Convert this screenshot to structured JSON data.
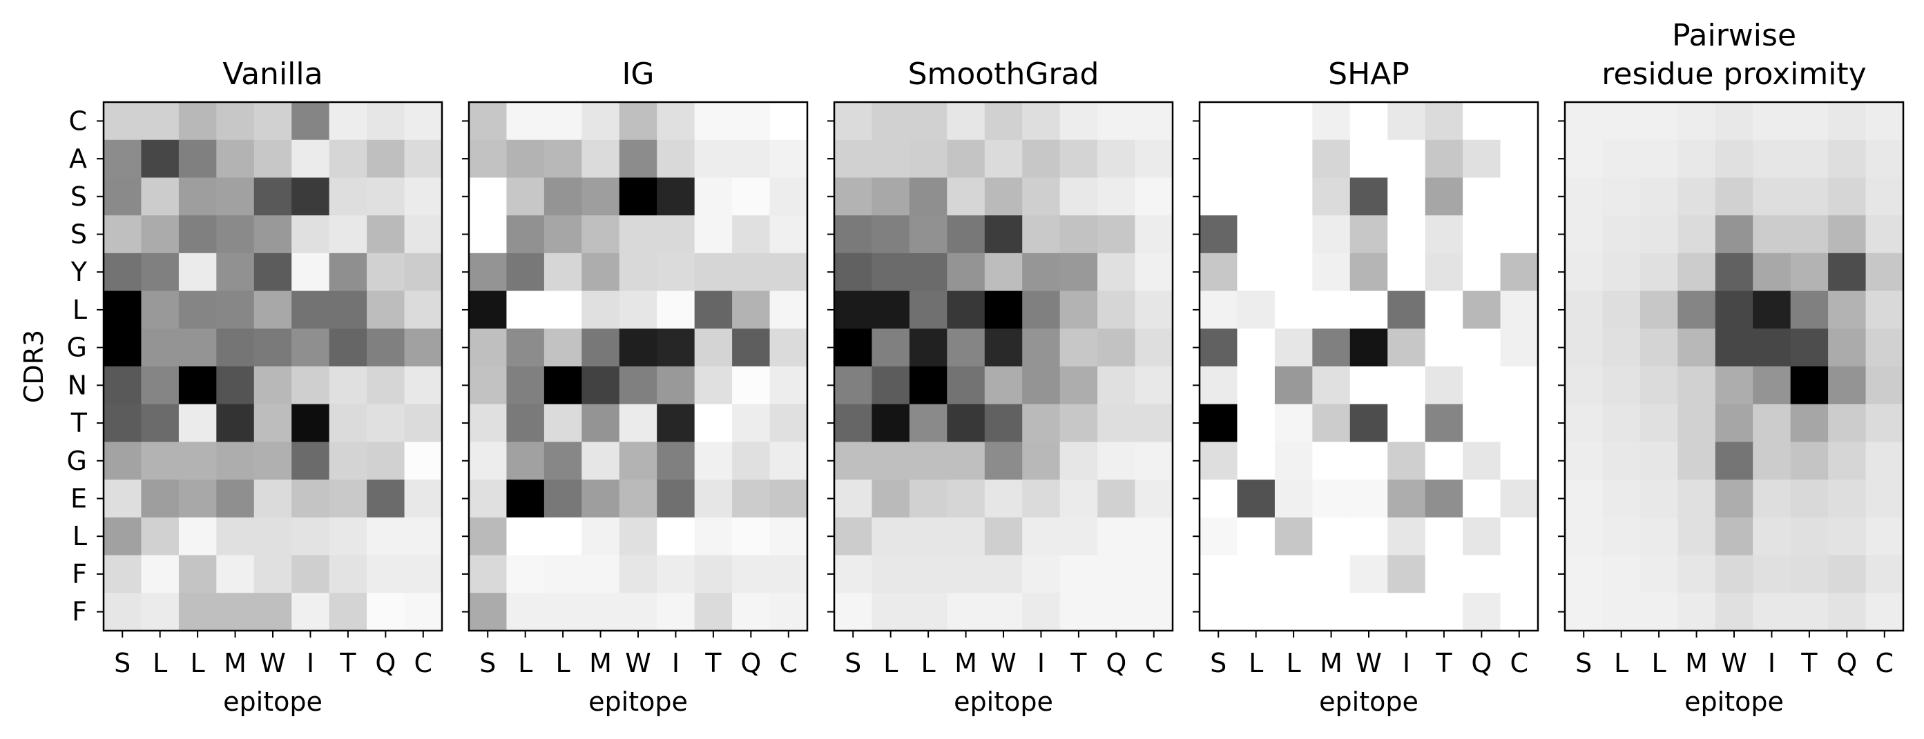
{
  "chart_data": {
    "type": "heatmap",
    "colormap": "Greys",
    "ylabel": "CDR3",
    "xlabel": "epitope",
    "rows": [
      "C",
      "A",
      "S",
      "S",
      "Y",
      "L",
      "G",
      "N",
      "T",
      "G",
      "E",
      "L",
      "F",
      "F"
    ],
    "cols": [
      "S",
      "L",
      "L",
      "M",
      "W",
      "I",
      "T",
      "Q",
      "C"
    ],
    "panels": [
      {
        "title_lines": [
          "Vanilla"
        ],
        "values": [
          [
            0.18,
            0.18,
            0.28,
            0.22,
            0.18,
            0.48,
            0.07,
            0.1,
            0.07
          ],
          [
            0.45,
            0.72,
            0.5,
            0.3,
            0.22,
            0.08,
            0.16,
            0.25,
            0.14
          ],
          [
            0.46,
            0.2,
            0.38,
            0.37,
            0.65,
            0.77,
            0.13,
            0.12,
            0.08
          ],
          [
            0.25,
            0.33,
            0.5,
            0.46,
            0.4,
            0.12,
            0.09,
            0.27,
            0.1
          ],
          [
            0.55,
            0.5,
            0.08,
            0.43,
            0.64,
            0.04,
            0.44,
            0.18,
            0.2
          ],
          [
            1.0,
            0.4,
            0.48,
            0.47,
            0.34,
            0.55,
            0.55,
            0.26,
            0.14
          ],
          [
            1.0,
            0.42,
            0.42,
            0.54,
            0.52,
            0.44,
            0.6,
            0.5,
            0.37
          ],
          [
            0.65,
            0.48,
            1.0,
            0.67,
            0.28,
            0.19,
            0.12,
            0.16,
            0.09
          ],
          [
            0.64,
            0.58,
            0.08,
            0.8,
            0.26,
            0.95,
            0.14,
            0.12,
            0.14
          ],
          [
            0.36,
            0.3,
            0.3,
            0.32,
            0.31,
            0.58,
            0.17,
            0.18,
            0.01
          ],
          [
            0.13,
            0.38,
            0.34,
            0.44,
            0.14,
            0.23,
            0.21,
            0.58,
            0.09
          ],
          [
            0.37,
            0.18,
            0.04,
            0.12,
            0.12,
            0.11,
            0.09,
            0.05,
            0.05
          ],
          [
            0.14,
            0.04,
            0.23,
            0.06,
            0.12,
            0.19,
            0.11,
            0.07,
            0.07
          ],
          [
            0.1,
            0.08,
            0.25,
            0.25,
            0.25,
            0.06,
            0.17,
            0.02,
            0.03
          ]
        ]
      },
      {
        "title_lines": [
          "IG"
        ],
        "values": [
          [
            0.22,
            0.04,
            0.04,
            0.1,
            0.25,
            0.12,
            0.03,
            0.03,
            0.0
          ],
          [
            0.24,
            0.3,
            0.28,
            0.14,
            0.45,
            0.15,
            0.07,
            0.07,
            0.05
          ],
          [
            0.0,
            0.22,
            0.42,
            0.38,
            1.0,
            0.85,
            0.04,
            0.02,
            0.07
          ],
          [
            0.0,
            0.43,
            0.35,
            0.25,
            0.15,
            0.15,
            0.04,
            0.12,
            0.06
          ],
          [
            0.42,
            0.53,
            0.16,
            0.32,
            0.15,
            0.14,
            0.16,
            0.16,
            0.16
          ],
          [
            0.92,
            0.0,
            0.0,
            0.12,
            0.1,
            0.02,
            0.6,
            0.3,
            0.04
          ],
          [
            0.25,
            0.45,
            0.24,
            0.53,
            0.88,
            0.85,
            0.17,
            0.63,
            0.14
          ],
          [
            0.24,
            0.5,
            1.0,
            0.74,
            0.5,
            0.4,
            0.12,
            0.01,
            0.07
          ],
          [
            0.12,
            0.52,
            0.14,
            0.42,
            0.08,
            0.85,
            0.0,
            0.07,
            0.12
          ],
          [
            0.07,
            0.37,
            0.47,
            0.1,
            0.3,
            0.5,
            0.06,
            0.12,
            0.07
          ],
          [
            0.12,
            1.0,
            0.53,
            0.38,
            0.27,
            0.56,
            0.1,
            0.2,
            0.22
          ],
          [
            0.27,
            0.0,
            0.0,
            0.05,
            0.12,
            0.0,
            0.04,
            0.02,
            0.04
          ],
          [
            0.15,
            0.03,
            0.04,
            0.04,
            0.1,
            0.07,
            0.1,
            0.07,
            0.07
          ],
          [
            0.33,
            0.06,
            0.06,
            0.06,
            0.06,
            0.04,
            0.14,
            0.04,
            0.05
          ]
        ]
      },
      {
        "title_lines": [
          "SmoothGrad"
        ],
        "values": [
          [
            0.14,
            0.18,
            0.18,
            0.1,
            0.18,
            0.13,
            0.07,
            0.05,
            0.05
          ],
          [
            0.18,
            0.18,
            0.19,
            0.23,
            0.14,
            0.22,
            0.17,
            0.11,
            0.08
          ],
          [
            0.3,
            0.34,
            0.44,
            0.16,
            0.27,
            0.19,
            0.09,
            0.07,
            0.04
          ],
          [
            0.52,
            0.5,
            0.43,
            0.53,
            0.76,
            0.21,
            0.24,
            0.22,
            0.07
          ],
          [
            0.62,
            0.58,
            0.58,
            0.42,
            0.26,
            0.41,
            0.4,
            0.12,
            0.06
          ],
          [
            0.9,
            0.9,
            0.56,
            0.78,
            1.0,
            0.5,
            0.3,
            0.16,
            0.1
          ],
          [
            1.0,
            0.5,
            0.87,
            0.48,
            0.84,
            0.42,
            0.22,
            0.24,
            0.13
          ],
          [
            0.5,
            0.64,
            1.0,
            0.55,
            0.32,
            0.42,
            0.32,
            0.12,
            0.09
          ],
          [
            0.6,
            0.92,
            0.46,
            0.78,
            0.62,
            0.27,
            0.22,
            0.13,
            0.13
          ],
          [
            0.25,
            0.25,
            0.25,
            0.25,
            0.45,
            0.28,
            0.1,
            0.06,
            0.05
          ],
          [
            0.1,
            0.27,
            0.18,
            0.16,
            0.1,
            0.14,
            0.08,
            0.18,
            0.07
          ],
          [
            0.2,
            0.1,
            0.1,
            0.1,
            0.19,
            0.07,
            0.07,
            0.04,
            0.04
          ],
          [
            0.07,
            0.09,
            0.09,
            0.09,
            0.09,
            0.06,
            0.04,
            0.04,
            0.04
          ],
          [
            0.04,
            0.08,
            0.08,
            0.05,
            0.05,
            0.08,
            0.04,
            0.04,
            0.04
          ]
        ]
      },
      {
        "title_lines": [
          "SHAP"
        ],
        "values": [
          [
            0.0,
            0.0,
            0.0,
            0.06,
            0.0,
            0.09,
            0.14,
            0.0,
            0.0
          ],
          [
            0.0,
            0.0,
            0.0,
            0.16,
            0.0,
            0.0,
            0.22,
            0.12,
            0.0
          ],
          [
            0.0,
            0.0,
            0.0,
            0.14,
            0.65,
            0.0,
            0.35,
            0.0,
            0.0
          ],
          [
            0.6,
            0.0,
            0.0,
            0.07,
            0.22,
            0.0,
            0.1,
            0.0,
            0.0
          ],
          [
            0.22,
            0.0,
            0.0,
            0.06,
            0.29,
            0.0,
            0.11,
            0.0,
            0.25
          ],
          [
            0.05,
            0.07,
            0.0,
            0.0,
            0.0,
            0.55,
            0.0,
            0.28,
            0.06
          ],
          [
            0.62,
            0.0,
            0.1,
            0.5,
            0.92,
            0.22,
            0.0,
            0.0,
            0.06
          ],
          [
            0.08,
            0.0,
            0.4,
            0.12,
            0.0,
            0.0,
            0.1,
            0.0,
            0.0
          ],
          [
            1.0,
            0.0,
            0.04,
            0.2,
            0.7,
            0.0,
            0.48,
            0.0,
            0.0
          ],
          [
            0.13,
            0.0,
            0.05,
            0.0,
            0.0,
            0.19,
            0.0,
            0.1,
            0.0
          ],
          [
            0.0,
            0.68,
            0.06,
            0.03,
            0.03,
            0.32,
            0.44,
            0.0,
            0.1
          ],
          [
            0.03,
            0.0,
            0.22,
            0.0,
            0.0,
            0.1,
            0.0,
            0.1,
            0.0
          ],
          [
            0.0,
            0.0,
            0.0,
            0.0,
            0.06,
            0.19,
            0.0,
            0.0,
            0.0
          ],
          [
            0.0,
            0.0,
            0.0,
            0.0,
            0.0,
            0.0,
            0.0,
            0.07,
            0.0
          ]
        ]
      },
      {
        "title_lines": [
          "Pairwise",
          "residue proximity"
        ],
        "values": [
          [
            0.06,
            0.06,
            0.06,
            0.07,
            0.09,
            0.07,
            0.07,
            0.09,
            0.07
          ],
          [
            0.06,
            0.07,
            0.07,
            0.09,
            0.12,
            0.1,
            0.1,
            0.13,
            0.09
          ],
          [
            0.07,
            0.08,
            0.09,
            0.12,
            0.18,
            0.13,
            0.13,
            0.16,
            0.1
          ],
          [
            0.07,
            0.09,
            0.1,
            0.14,
            0.42,
            0.2,
            0.2,
            0.28,
            0.12
          ],
          [
            0.08,
            0.1,
            0.12,
            0.2,
            0.62,
            0.34,
            0.3,
            0.7,
            0.22
          ],
          [
            0.1,
            0.13,
            0.22,
            0.48,
            0.72,
            0.87,
            0.5,
            0.3,
            0.15
          ],
          [
            0.1,
            0.12,
            0.17,
            0.28,
            0.72,
            0.72,
            0.7,
            0.33,
            0.18
          ],
          [
            0.09,
            0.11,
            0.14,
            0.18,
            0.32,
            0.42,
            1.0,
            0.42,
            0.2
          ],
          [
            0.08,
            0.1,
            0.12,
            0.18,
            0.35,
            0.2,
            0.35,
            0.2,
            0.14
          ],
          [
            0.07,
            0.09,
            0.1,
            0.18,
            0.54,
            0.2,
            0.23,
            0.16,
            0.1
          ],
          [
            0.06,
            0.08,
            0.09,
            0.12,
            0.32,
            0.13,
            0.15,
            0.13,
            0.1
          ],
          [
            0.06,
            0.07,
            0.08,
            0.12,
            0.26,
            0.11,
            0.12,
            0.11,
            0.08
          ],
          [
            0.05,
            0.06,
            0.07,
            0.1,
            0.15,
            0.12,
            0.13,
            0.15,
            0.1
          ],
          [
            0.05,
            0.06,
            0.06,
            0.08,
            0.12,
            0.09,
            0.09,
            0.11,
            0.07
          ]
        ]
      }
    ]
  }
}
